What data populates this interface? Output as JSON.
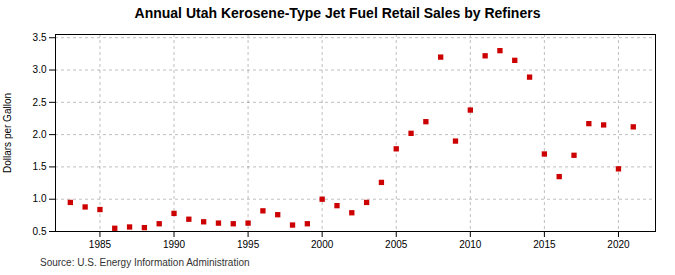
{
  "chart_data": {
    "type": "scatter",
    "title": "Annual Utah Kerosene-Type Jet Fuel Retail Sales by Refiners",
    "ylabel": "Dollars per Gallon",
    "source": "Source: U.S. Energy Information Administration",
    "x": [
      1983,
      1984,
      1985,
      1986,
      1987,
      1988,
      1989,
      1990,
      1991,
      1992,
      1993,
      1994,
      1995,
      1996,
      1997,
      1998,
      1999,
      2000,
      2001,
      2002,
      2003,
      2004,
      2005,
      2006,
      2007,
      2008,
      2009,
      2010,
      2011,
      2012,
      2013,
      2014,
      2015,
      2016,
      2017,
      2018,
      2019,
      2020,
      2021
    ],
    "values": [
      0.95,
      0.88,
      0.84,
      0.55,
      0.57,
      0.56,
      0.62,
      0.78,
      0.69,
      0.65,
      0.63,
      0.62,
      0.63,
      0.82,
      0.76,
      0.6,
      0.62,
      1.0,
      0.9,
      0.79,
      0.95,
      1.26,
      1.78,
      2.02,
      2.2,
      3.2,
      1.9,
      2.38,
      3.22,
      3.3,
      3.15,
      2.89,
      1.7,
      1.35,
      1.68,
      2.17,
      2.15,
      1.47,
      2.12
    ],
    "color": "#cc0000",
    "marker": "square",
    "xlim": [
      1982,
      2022.5
    ],
    "xticks": [
      1985,
      1990,
      1995,
      2000,
      2005,
      2010,
      2015,
      2020
    ],
    "ylim": [
      0.5,
      3.55
    ],
    "yticks": [
      0.5,
      {
        "value": 1,
        "label": "1.0"
      },
      1.5,
      {
        "value": 2,
        "label": "2.0"
      },
      2.5,
      {
        "value": 3,
        "label": "3.0"
      },
      3.5
    ],
    "grid": true
  }
}
